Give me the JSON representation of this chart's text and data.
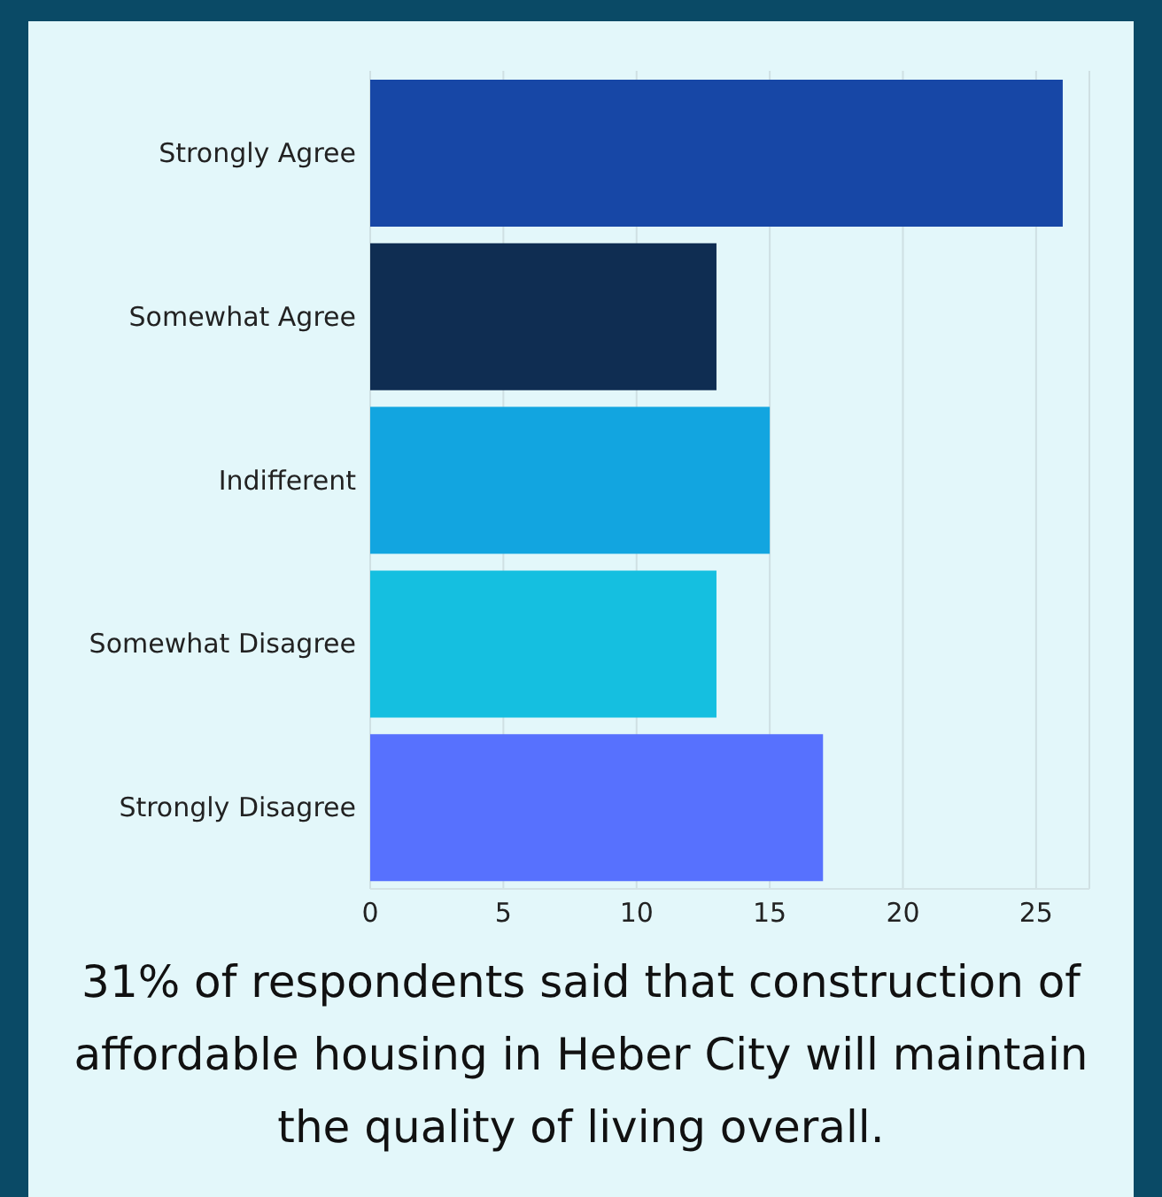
{
  "chart_data": {
    "type": "bar",
    "orientation": "horizontal",
    "categories": [
      "Strongly Agree",
      "Somewhat Agree",
      "Indifferent",
      "Somewhat Disagree",
      "Strongly Disagree"
    ],
    "values": [
      26,
      13,
      15,
      13,
      17
    ],
    "colors": [
      "#1747a6",
      "#0f2d52",
      "#12a5e0",
      "#15bfe0",
      "#5771fe"
    ],
    "xlim": [
      0,
      27
    ],
    "xticks": [
      0,
      5,
      10,
      15,
      20,
      25
    ],
    "grid": "x",
    "annotations": [
      "31% of respondents said that construction of affordable housing in Heber City will maintain the quality of living overall."
    ]
  }
}
